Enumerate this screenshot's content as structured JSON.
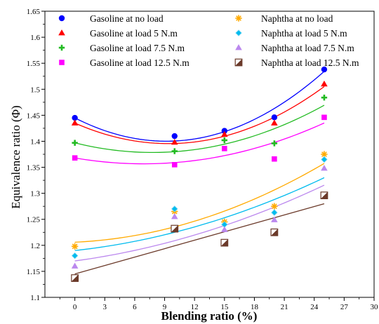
{
  "chart_data": {
    "type": "scatter",
    "xlabel": "Blending ratio (%)",
    "ylabel": "Equivalence ratio (Φ)",
    "xlim": [
      -3,
      30
    ],
    "ylim": [
      1.1,
      1.65
    ],
    "xticks": [
      0,
      3,
      6,
      9,
      12,
      15,
      18,
      21,
      24,
      27,
      30
    ],
    "yticks": [
      1.1,
      1.15,
      1.2,
      1.25,
      1.3,
      1.35,
      1.4,
      1.45,
      1.5,
      1.55,
      1.6,
      1.65
    ],
    "x": [
      0,
      10,
      15,
      20,
      25
    ],
    "legend_position": "top",
    "series": [
      {
        "name": "Gasoline at no load",
        "values": [
          1.445,
          1.41,
          1.42,
          1.446,
          1.538
        ],
        "color": "#0000ff",
        "marker": "circle",
        "fit": [
          1.445,
          -0.0098,
          0.000535
        ]
      },
      {
        "name": "Gasoline at load 5 N.m",
        "values": [
          1.435,
          1.398,
          1.413,
          1.435,
          1.51
        ],
        "color": "#ff0000",
        "marker": "triangle",
        "fit": [
          1.435,
          -0.00842,
          0.000449
        ]
      },
      {
        "name": "Gasoline at load 7.5 N.m",
        "values": [
          1.397,
          1.381,
          1.402,
          1.396,
          1.484
        ],
        "color": "#22bb22",
        "marker": "plus",
        "fit": [
          1.397,
          -0.00476,
          0.000306
        ]
      },
      {
        "name": "Gasoline at load 12.5 N.m",
        "values": [
          1.368,
          1.355,
          1.386,
          1.366,
          1.446
        ],
        "color": "#ff00ff",
        "marker": "square",
        "fit": [
          1.368,
          -0.00329,
          0.000239
        ]
      },
      {
        "name": "Naphtha at no load",
        "values": [
          1.198,
          1.265,
          1.245,
          1.275,
          1.375
        ],
        "color": "#ffaa00",
        "marker": "asterisk",
        "fit": [
          1.206,
          0.00088,
          0.000207
        ]
      },
      {
        "name": "Naphtha at load 5 N.m",
        "values": [
          1.18,
          1.27,
          1.24,
          1.263,
          1.365
        ],
        "color": "#00bbee",
        "marker": "diamond",
        "fit": [
          1.19,
          0.0021,
          0.00014
        ]
      },
      {
        "name": "Naphtha at load 7.5 N.m",
        "values": [
          1.16,
          1.255,
          1.23,
          1.249,
          1.348
        ],
        "color": "#bb88ee",
        "marker": "triangle",
        "fit": [
          1.17,
          0.0026,
          0.000129
        ]
      },
      {
        "name": "Naphtha at load 12.5 N.m",
        "values": [
          1.137,
          1.232,
          1.205,
          1.225,
          1.296
        ],
        "color": "#6b3a2a",
        "marker": "halfsquare",
        "fit": [
          1.145,
          0.0054,
          0
        ]
      }
    ]
  }
}
